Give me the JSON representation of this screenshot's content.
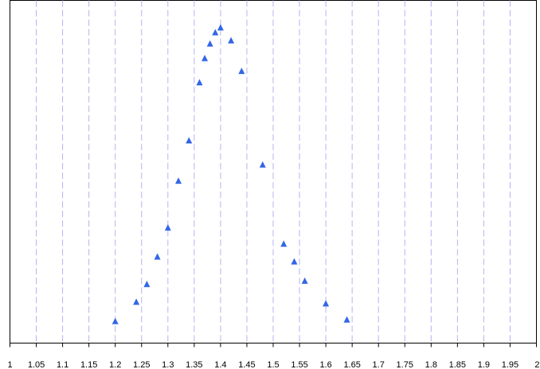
{
  "chart_data": {
    "type": "scatter",
    "title": "",
    "xlabel": "",
    "ylabel": "",
    "xlim": [
      1,
      2
    ],
    "x_ticks": [
      "1",
      "1.05",
      "1.1",
      "1.15",
      "1.2",
      "1.25",
      "1.3",
      "1.35",
      "1.4",
      "1.45",
      "1.5",
      "1.55",
      "1.6",
      "1.65",
      "1.7",
      "1.75",
      "1.8",
      "1.85",
      "1.9",
      "1.95",
      "2"
    ],
    "y_axis_visible": false,
    "grid": {
      "vertical": true,
      "horizontal": false,
      "style": "dashed",
      "color": "#b3b3f2"
    },
    "marker": {
      "shape": "triangle-up",
      "color": "#3366e6"
    },
    "series": [
      {
        "points": [
          {
            "x": 1.2,
            "y": 0.04
          },
          {
            "x": 1.24,
            "y": 0.1
          },
          {
            "x": 1.26,
            "y": 0.155
          },
          {
            "x": 1.28,
            "y": 0.24
          },
          {
            "x": 1.3,
            "y": 0.33
          },
          {
            "x": 1.32,
            "y": 0.475
          },
          {
            "x": 1.34,
            "y": 0.6
          },
          {
            "x": 1.36,
            "y": 0.78
          },
          {
            "x": 1.37,
            "y": 0.855
          },
          {
            "x": 1.38,
            "y": 0.9
          },
          {
            "x": 1.39,
            "y": 0.935
          },
          {
            "x": 1.4,
            "y": 0.95
          },
          {
            "x": 1.42,
            "y": 0.91
          },
          {
            "x": 1.44,
            "y": 0.815
          },
          {
            "x": 1.48,
            "y": 0.525
          },
          {
            "x": 1.52,
            "y": 0.28
          },
          {
            "x": 1.54,
            "y": 0.225
          },
          {
            "x": 1.56,
            "y": 0.165
          },
          {
            "x": 1.6,
            "y": 0.095
          },
          {
            "x": 1.64,
            "y": 0.045
          }
        ]
      }
    ]
  }
}
